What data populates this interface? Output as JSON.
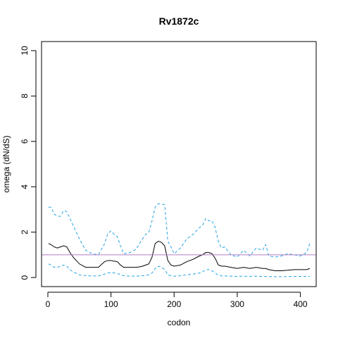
{
  "chart_data": {
    "type": "line",
    "title": "Rv1872c",
    "xlabel": "codon",
    "ylabel": "omega (dN/dS)",
    "xlim": [
      -10,
      425
    ],
    "ylim": [
      -0.4,
      10.4
    ],
    "xticks": [
      0,
      100,
      200,
      300,
      400
    ],
    "yticks": [
      0,
      2,
      4,
      6,
      8,
      10
    ],
    "reference_line": {
      "y": 1,
      "color": "#b07cc6"
    },
    "grid": false,
    "series": [
      {
        "style": "dashed",
        "color": "#29a3e0",
        "x": [
          1,
          5,
          10,
          15,
          20,
          25,
          30,
          35,
          40,
          50,
          60,
          70,
          80,
          90,
          95,
          100,
          105,
          110,
          115,
          120,
          130,
          140,
          145,
          150,
          155,
          160,
          165,
          170,
          175,
          180,
          185,
          190,
          195,
          200,
          210,
          220,
          230,
          240,
          245,
          250,
          255,
          260,
          265,
          270,
          275,
          280,
          290,
          300,
          310,
          320,
          330,
          340,
          345,
          350,
          360,
          370,
          380,
          390,
          400,
          410,
          415
        ],
        "y": [
          3.1,
          3.1,
          2.8,
          2.7,
          2.7,
          2.95,
          2.9,
          2.6,
          2.3,
          1.7,
          1.2,
          1.05,
          1.0,
          1.5,
          1.95,
          2.05,
          1.9,
          1.8,
          1.4,
          1.05,
          1.1,
          1.25,
          1.5,
          1.7,
          1.9,
          2.0,
          2.5,
          3.1,
          3.25,
          3.25,
          3.2,
          1.6,
          1.35,
          1.05,
          1.3,
          1.7,
          1.9,
          2.2,
          2.3,
          2.6,
          2.5,
          2.5,
          2.2,
          1.6,
          1.3,
          1.35,
          1.0,
          0.9,
          1.2,
          0.95,
          1.3,
          1.2,
          1.45,
          0.95,
          0.9,
          0.95,
          1.05,
          1.0,
          0.95,
          1.1,
          1.5
        ]
      },
      {
        "style": "solid",
        "color": "#000000",
        "x": [
          1,
          5,
          10,
          15,
          20,
          25,
          30,
          35,
          40,
          50,
          60,
          70,
          80,
          90,
          95,
          100,
          105,
          110,
          115,
          120,
          130,
          140,
          145,
          150,
          155,
          160,
          165,
          170,
          175,
          180,
          185,
          190,
          195,
          200,
          210,
          220,
          230,
          240,
          245,
          250,
          255,
          260,
          265,
          270,
          275,
          280,
          290,
          300,
          310,
          320,
          330,
          340,
          345,
          350,
          360,
          370,
          380,
          390,
          400,
          410,
          415
        ],
        "y": [
          1.5,
          1.45,
          1.35,
          1.3,
          1.35,
          1.4,
          1.35,
          1.1,
          0.9,
          0.6,
          0.45,
          0.45,
          0.45,
          0.7,
          0.75,
          0.75,
          0.72,
          0.7,
          0.55,
          0.45,
          0.45,
          0.45,
          0.47,
          0.5,
          0.55,
          0.6,
          0.9,
          1.5,
          1.6,
          1.55,
          1.4,
          0.75,
          0.55,
          0.5,
          0.55,
          0.7,
          0.8,
          0.95,
          1.0,
          1.1,
          1.1,
          1.05,
          0.85,
          0.55,
          0.5,
          0.5,
          0.45,
          0.4,
          0.45,
          0.4,
          0.45,
          0.4,
          0.4,
          0.35,
          0.3,
          0.3,
          0.32,
          0.35,
          0.35,
          0.35,
          0.4
        ]
      },
      {
        "style": "dashed",
        "color": "#29a3e0",
        "x": [
          1,
          5,
          10,
          15,
          20,
          25,
          30,
          35,
          40,
          50,
          60,
          70,
          80,
          90,
          95,
          100,
          105,
          110,
          115,
          120,
          130,
          140,
          145,
          150,
          155,
          160,
          165,
          170,
          175,
          180,
          185,
          190,
          195,
          200,
          210,
          220,
          230,
          240,
          245,
          250,
          255,
          260,
          265,
          270,
          275,
          280,
          290,
          300,
          310,
          320,
          330,
          340,
          345,
          350,
          360,
          370,
          380,
          390,
          400,
          410,
          415
        ],
        "y": [
          0.6,
          0.55,
          0.45,
          0.45,
          0.5,
          0.55,
          0.5,
          0.35,
          0.25,
          0.12,
          0.08,
          0.07,
          0.07,
          0.15,
          0.2,
          0.22,
          0.2,
          0.18,
          0.12,
          0.08,
          0.06,
          0.06,
          0.07,
          0.08,
          0.1,
          0.12,
          0.2,
          0.4,
          0.5,
          0.45,
          0.35,
          0.12,
          0.08,
          0.06,
          0.08,
          0.12,
          0.15,
          0.2,
          0.25,
          0.35,
          0.35,
          0.3,
          0.2,
          0.1,
          0.07,
          0.07,
          0.06,
          0.05,
          0.06,
          0.05,
          0.06,
          0.05,
          0.05,
          0.04,
          0.04,
          0.04,
          0.04,
          0.05,
          0.05,
          0.05,
          0.05
        ]
      }
    ]
  }
}
